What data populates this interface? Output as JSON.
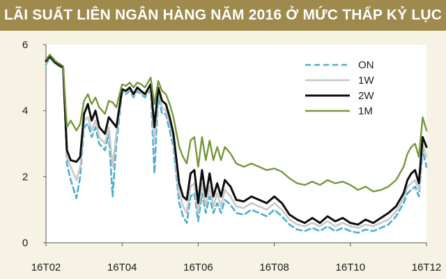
{
  "title": "LÃI SUẤT LIÊN NGÂN HÀNG NĂM 2016 Ở MỨC THẤP KỶ LỤC",
  "chart_data": {
    "type": "line",
    "title": "LÃI SUẤT LIÊN NGÂN HÀNG NĂM 2016 Ở MỨC THẤP KỶ LỤC",
    "xlabel": "",
    "ylabel": "",
    "x_tick_labels": [
      "16T02",
      "16T04",
      "16T06",
      "16T08",
      "16T10",
      "16T12"
    ],
    "y_tick_labels": [
      "0",
      "2",
      "4",
      "6"
    ],
    "xlim": [
      0,
      10
    ],
    "ylim": [
      0,
      6
    ],
    "grid": false,
    "legend_position": "top-right",
    "x": [
      0,
      0.1,
      0.25,
      0.45,
      0.55,
      0.65,
      0.8,
      0.9,
      1.0,
      1.1,
      1.2,
      1.3,
      1.4,
      1.55,
      1.65,
      1.75,
      1.85,
      2.0,
      2.1,
      2.2,
      2.3,
      2.4,
      2.5,
      2.6,
      2.75,
      2.85,
      2.95,
      3.05,
      3.15,
      3.25,
      3.35,
      3.5,
      3.6,
      3.7,
      3.8,
      3.9,
      4.0,
      4.1,
      4.2,
      4.3,
      4.4,
      4.5,
      4.6,
      4.7,
      4.85,
      5.0,
      5.2,
      5.4,
      5.6,
      5.8,
      6.0,
      6.2,
      6.4,
      6.6,
      6.8,
      7.0,
      7.2,
      7.4,
      7.6,
      7.8,
      8.0,
      8.2,
      8.4,
      8.6,
      8.8,
      9.0,
      9.2,
      9.4,
      9.5,
      9.6,
      9.7,
      9.8,
      9.9,
      10.0
    ],
    "series": [
      {
        "name": "ON",
        "color": "#4aaed0",
        "dash": "dashed",
        "values": [
          5.4,
          5.6,
          5.4,
          5.3,
          2.4,
          1.9,
          1.35,
          2.0,
          3.5,
          3.6,
          3.2,
          3.5,
          3.0,
          2.8,
          3.3,
          1.4,
          3.0,
          4.55,
          4.5,
          4.6,
          4.4,
          4.6,
          4.5,
          4.4,
          4.65,
          2.1,
          4.5,
          3.9,
          3.9,
          3.4,
          2.9,
          1.2,
          0.8,
          0.6,
          1.4,
          1.5,
          0.65,
          1.5,
          0.9,
          1.4,
          0.9,
          1.2,
          0.9,
          1.3,
          1.15,
          0.9,
          0.85,
          1.0,
          0.9,
          0.8,
          1.0,
          0.8,
          0.55,
          0.4,
          0.35,
          0.45,
          0.35,
          0.5,
          0.35,
          0.45,
          0.35,
          0.3,
          0.4,
          0.35,
          0.45,
          0.55,
          0.8,
          1.2,
          1.5,
          1.6,
          1.7,
          1.4,
          2.8,
          2.3
        ]
      },
      {
        "name": "1W",
        "color": "#c8c8c8",
        "dash": "solid",
        "values": [
          5.45,
          5.62,
          5.42,
          5.3,
          2.6,
          2.3,
          1.9,
          2.3,
          3.7,
          3.8,
          3.4,
          3.7,
          3.2,
          3.0,
          3.5,
          2.3,
          3.3,
          4.6,
          4.55,
          4.65,
          4.45,
          4.65,
          4.55,
          4.45,
          4.7,
          3.0,
          4.6,
          4.1,
          4.0,
          3.6,
          3.1,
          1.5,
          1.1,
          0.9,
          1.7,
          1.8,
          0.9,
          1.8,
          1.1,
          1.7,
          1.1,
          1.5,
          1.1,
          1.6,
          1.4,
          1.1,
          1.05,
          1.2,
          1.1,
          1.0,
          1.2,
          1.0,
          0.7,
          0.55,
          0.5,
          0.6,
          0.5,
          0.65,
          0.5,
          0.6,
          0.5,
          0.45,
          0.55,
          0.5,
          0.6,
          0.7,
          0.95,
          1.35,
          1.7,
          1.8,
          1.9,
          1.6,
          3.0,
          2.6
        ]
      },
      {
        "name": "2W",
        "color": "#0d0d0d",
        "dash": "solid",
        "values": [
          5.5,
          5.65,
          5.45,
          5.3,
          2.8,
          2.5,
          2.45,
          2.6,
          3.9,
          4.2,
          3.7,
          4.0,
          3.5,
          3.3,
          3.8,
          3.65,
          3.5,
          4.65,
          4.6,
          4.7,
          4.5,
          4.7,
          4.6,
          4.5,
          4.8,
          3.5,
          4.7,
          4.3,
          4.2,
          3.8,
          3.3,
          1.8,
          1.4,
          1.3,
          2.1,
          2.2,
          1.2,
          2.2,
          1.4,
          2.1,
          1.4,
          1.8,
          1.4,
          1.9,
          1.7,
          1.3,
          1.25,
          1.4,
          1.3,
          1.2,
          1.4,
          1.2,
          0.85,
          0.7,
          0.6,
          0.75,
          0.6,
          0.8,
          0.65,
          0.75,
          0.6,
          0.55,
          0.7,
          0.6,
          0.75,
          0.9,
          1.1,
          1.5,
          1.9,
          2.1,
          2.2,
          1.8,
          3.2,
          2.9
        ]
      },
      {
        "name": "1M",
        "color": "#76963a",
        "dash": "solid",
        "values": [
          5.55,
          5.7,
          5.5,
          5.35,
          3.5,
          3.7,
          3.4,
          3.6,
          4.3,
          4.5,
          4.2,
          4.4,
          4.1,
          3.9,
          4.3,
          4.25,
          4.1,
          4.8,
          4.75,
          4.85,
          4.7,
          4.85,
          4.8,
          4.7,
          5.0,
          4.2,
          4.9,
          4.6,
          4.5,
          4.2,
          3.8,
          2.9,
          2.6,
          2.4,
          3.1,
          3.2,
          2.3,
          3.2,
          2.5,
          3.1,
          2.5,
          2.9,
          2.5,
          2.9,
          2.7,
          2.4,
          2.3,
          2.4,
          2.3,
          2.2,
          2.25,
          2.15,
          1.95,
          1.8,
          1.75,
          1.85,
          1.75,
          1.9,
          1.8,
          1.85,
          1.75,
          1.6,
          1.7,
          1.55,
          1.6,
          1.7,
          1.9,
          2.3,
          2.7,
          2.9,
          3.0,
          2.6,
          3.8,
          3.4
        ]
      }
    ]
  }
}
